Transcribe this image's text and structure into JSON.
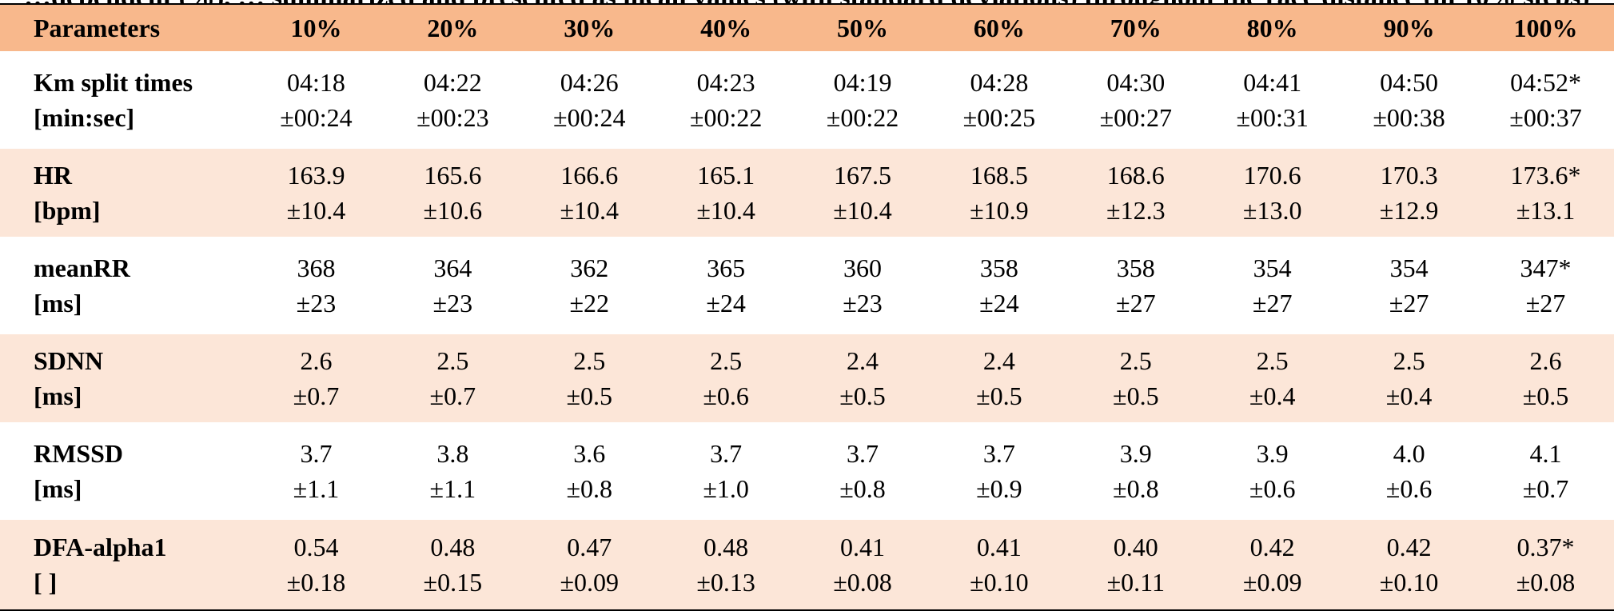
{
  "caption_fragment": "…dependent (%),  … summarized and presented as mean values (with standard deviations) throughout the race distance (in 10% steps)",
  "header": [
    "Parameters",
    "10%",
    "20%",
    "30%",
    "40%",
    "50%",
    "60%",
    "70%",
    "80%",
    "90%",
    "100%"
  ],
  "rows": [
    {
      "name": "Km split times",
      "unit": "[min:sec]",
      "shaded": false,
      "means": [
        "04:18",
        "04:22",
        "04:26",
        "04:23",
        "04:19",
        "04:28",
        "04:30",
        "04:41",
        "04:50",
        "04:52*"
      ],
      "sds": [
        "±00:24",
        "±00:23",
        "±00:24",
        "±00:22",
        "±00:22",
        "±00:25",
        "±00:27",
        "±00:31",
        "±00:38",
        "±00:37"
      ]
    },
    {
      "name": "HR",
      "unit": "[bpm]",
      "shaded": true,
      "means": [
        "163.9",
        "165.6",
        "166.6",
        "165.1",
        "167.5",
        "168.5",
        "168.6",
        "170.6",
        "170.3",
        "173.6*"
      ],
      "sds": [
        "±10.4",
        "±10.6",
        "±10.4",
        "±10.4",
        "±10.4",
        "±10.9",
        "±12.3",
        "±13.0",
        "±12.9",
        "±13.1"
      ]
    },
    {
      "name": "meanRR",
      "unit": "[ms]",
      "shaded": false,
      "means": [
        "368",
        "364",
        "362",
        "365",
        "360",
        "358",
        "358",
        "354",
        "354",
        "347*"
      ],
      "sds": [
        "±23",
        "±23",
        "±22",
        "±24",
        "±23",
        "±24",
        "±27",
        "±27",
        "±27",
        "±27"
      ]
    },
    {
      "name": "SDNN",
      "unit": "[ms]",
      "shaded": true,
      "means": [
        "2.6",
        "2.5",
        "2.5",
        "2.5",
        "2.4",
        "2.4",
        "2.5",
        "2.5",
        "2.5",
        "2.6"
      ],
      "sds": [
        "±0.7",
        "±0.7",
        "±0.5",
        "±0.6",
        "±0.5",
        "±0.5",
        "±0.5",
        "±0.4",
        "±0.4",
        "±0.5"
      ]
    },
    {
      "name": "RMSSD",
      "unit": "[ms]",
      "shaded": false,
      "means": [
        "3.7",
        "3.8",
        "3.6",
        "3.7",
        "3.7",
        "3.7",
        "3.9",
        "3.9",
        "4.0",
        "4.1"
      ],
      "sds": [
        "±1.1",
        "±1.1",
        "±0.8",
        "±1.0",
        "±0.8",
        "±0.9",
        "±0.8",
        "±0.6",
        "±0.6",
        "±0.7"
      ]
    },
    {
      "name": "DFA-alpha1",
      "unit": "[ ]",
      "shaded": true,
      "means": [
        "0.54",
        "0.48",
        "0.47",
        "0.48",
        "0.41",
        "0.41",
        "0.40",
        "0.42",
        "0.42",
        "0.37*"
      ],
      "sds": [
        "±0.18",
        "±0.15",
        "±0.09",
        "±0.13",
        "±0.08",
        "±0.10",
        "±0.11",
        "±0.09",
        "±0.10",
        "±0.08"
      ]
    }
  ]
}
